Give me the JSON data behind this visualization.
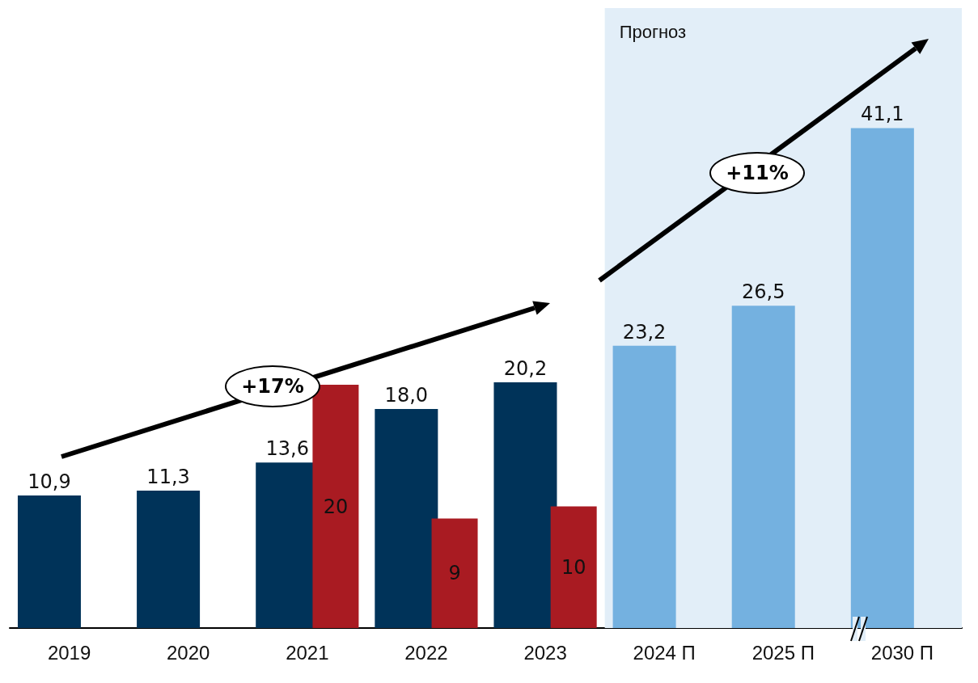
{
  "chart_data": {
    "type": "bar",
    "categories": [
      "2019",
      "2020",
      "2021",
      "2022",
      "2023",
      "2024 П",
      "2025 П",
      "2030 П"
    ],
    "series": [
      {
        "color": "#003359",
        "colors": [
          "#003359",
          "#003359",
          "#003359",
          "#003359",
          "#003359",
          "#74b1e0",
          "#74b1e0",
          "#74b1e0"
        ],
        "values": [
          10.9,
          11.3,
          13.6,
          18.0,
          20.2,
          23.2,
          26.5,
          41.1
        ],
        "value_labels": [
          "10,9",
          "11,3",
          "13,6",
          "18,0",
          "20,2",
          "23,2",
          "26,5",
          "41,1"
        ]
      },
      {
        "color": "#a91b22",
        "values": [
          null,
          null,
          20,
          9,
          10,
          null,
          null,
          null
        ],
        "value_labels": [
          null,
          null,
          "20",
          "9",
          "10",
          null,
          null,
          null
        ]
      }
    ],
    "bands": [
      {
        "axis": "x",
        "from": "2024 П",
        "to": "2030 П",
        "label": "Прогноз",
        "color": "#e2eef8"
      }
    ],
    "annotations": [
      "+17%",
      "+11%"
    ],
    "grid": false
  }
}
